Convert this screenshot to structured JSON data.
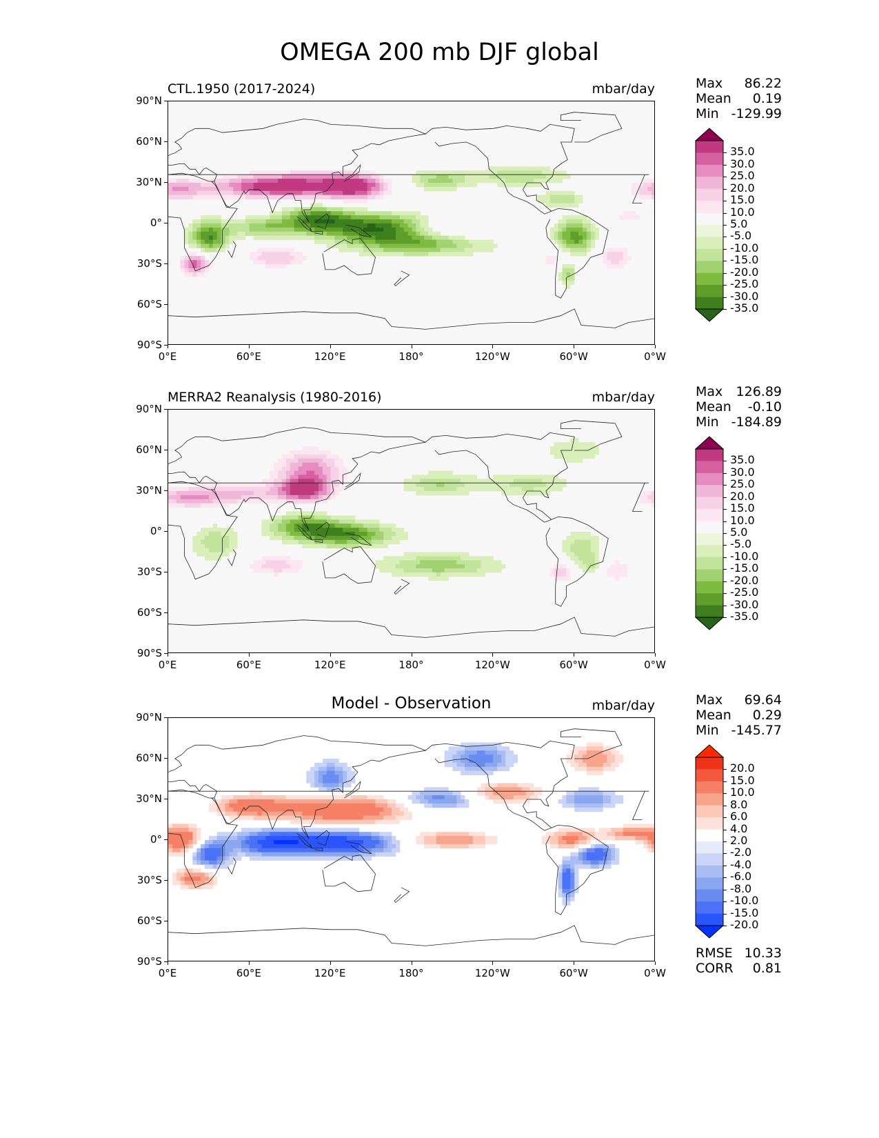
{
  "title": "OMEGA 200 mb DJF global",
  "lat_ticks": [
    "90°N",
    "60°N",
    "30°N",
    "0°",
    "30°S",
    "60°S",
    "90°S"
  ],
  "lon_ticks": [
    "0°E",
    "60°E",
    "120°E",
    "180°",
    "120°W",
    "60°W",
    "0°W"
  ],
  "palettes": {
    "pink_green": [
      "#276419",
      "#3f7f1e",
      "#5f9e2b",
      "#7fbb41",
      "#a2d26f",
      "#c1e39a",
      "#d9eeb9",
      "#ebf5dc",
      "#f7f7f7",
      "#fbe6f1",
      "#f7d2e6",
      "#f0b6d7",
      "#e68cc0",
      "#d6609f",
      "#c13a81",
      "#8e0152"
    ],
    "blue_red": [
      "#0532ff",
      "#2a55ff",
      "#4b72f6",
      "#6a8cf0",
      "#8aa6ef",
      "#aabdf2",
      "#c9d4f6",
      "#e6ebfa",
      "#ffffff",
      "#fde2db",
      "#fbc7b7",
      "#f8a48c",
      "#f58066",
      "#f25a40",
      "#ed3419",
      "#ff2a00"
    ]
  },
  "panels": [
    {
      "left_label": "CTL.1950 (2017-2024)",
      "center_label": "",
      "units": "mbar/day",
      "stats": [
        [
          "Max",
          "86.22"
        ],
        [
          "Mean",
          "0.19"
        ],
        [
          "Min",
          "-129.99"
        ]
      ],
      "palette": "pink_green",
      "cbar_labels": [
        "35.0",
        "30.0",
        "25.0",
        "20.0",
        "15.0",
        "10.0",
        "5.0",
        "-5.0",
        "-10.0",
        "-15.0",
        "-20.0",
        "-25.0",
        "-30.0",
        "-35.0"
      ],
      "extra_stats": []
    },
    {
      "left_label": "MERRA2 Reanalysis (1980-2016)",
      "center_label": "",
      "units": "mbar/day",
      "stats": [
        [
          "Max",
          "126.89"
        ],
        [
          "Mean",
          "-0.10"
        ],
        [
          "Min",
          "-184.89"
        ]
      ],
      "palette": "pink_green",
      "cbar_labels": [
        "35.0",
        "30.0",
        "25.0",
        "20.0",
        "15.0",
        "10.0",
        "5.0",
        "-5.0",
        "-10.0",
        "-15.0",
        "-20.0",
        "-25.0",
        "-30.0",
        "-35.0"
      ],
      "extra_stats": []
    },
    {
      "left_label": "",
      "center_label": "Model - Observation",
      "units": "mbar/day",
      "stats": [
        [
          "Max",
          "69.64"
        ],
        [
          "Mean",
          "0.29"
        ],
        [
          "Min",
          "-145.77"
        ]
      ],
      "palette": "blue_red",
      "cbar_labels": [
        "20.0",
        "15.0",
        "10.0",
        "8.0",
        "6.0",
        "4.0",
        "2.0",
        "-2.0",
        "-4.0",
        "-6.0",
        "-8.0",
        "-10.0",
        "-15.0",
        "-20.0"
      ],
      "extra_stats": [
        [
          "RMSE",
          "10.33"
        ],
        [
          "CORR",
          "0.81"
        ]
      ]
    }
  ]
}
